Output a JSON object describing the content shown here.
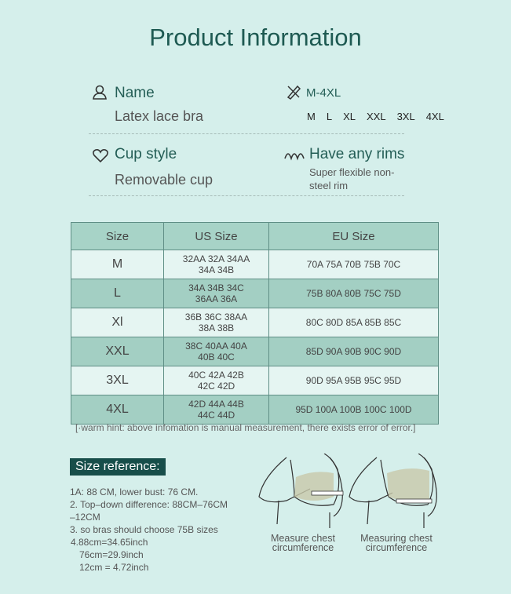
{
  "title": "Product Information",
  "specs": {
    "name_label": "Name",
    "name_value": "Latex lace bra",
    "size_label": "M-4XL",
    "sizes": [
      "M",
      "L",
      "XL",
      "XXL",
      "3XL",
      "4XL"
    ],
    "cup_label": "Cup style",
    "cup_value": "Removable cup",
    "rims_label": "Have any rims",
    "rims_value_1": "Super flexible non-",
    "rims_value_2": "steel rim"
  },
  "table": {
    "headers": [
      "Size",
      "US Size",
      "EU Size"
    ],
    "rows": [
      {
        "size": "M",
        "us1": "32AA 32A 34AA",
        "us2": "34A 34B",
        "eu": "70A 75A 70B 75B 70C"
      },
      {
        "size": "L",
        "us1": "34A 34B 34C",
        "us2": "36AA 36A",
        "eu": "75B 80A 80B 75C 75D"
      },
      {
        "size": "Xl",
        "us1": "36B 36C 38AA",
        "us2": "38A 38B",
        "eu": "80C 80D 85A 85B 85C"
      },
      {
        "size": "XXL",
        "us1": "38C 40AA 40A",
        "us2": "40B 40C",
        "eu": "85D 90A 90B 90C 90D"
      },
      {
        "size": "3XL",
        "us1": "40C 42A 42B",
        "us2": "42C 42D",
        "eu": "90D 95A 95B 95C 95D"
      },
      {
        "size": "4XL",
        "us1": "42D 44A 44B",
        "us2": "44C 44D",
        "eu": "95D 100A 100B 100C 100D"
      }
    ]
  },
  "hint": "[·warm hint: above infomation is manual measurement, there exists error of error.]",
  "reference": {
    "title": "Size reference:",
    "lines": [
      "1A: 88 CM, lower bust: 76 CM.",
      "2. Top–down difference: 88CM–76CM",
      "–12CM",
      "3. so bras should choose 75B sizes",
      "4.88cm=34.65inch",
      "76cm=29.9inch",
      "12cm = 4.72inch"
    ]
  },
  "figures": {
    "cap1_1": "Measure chest",
    "cap1_2": "circumference",
    "cap2_1": "Measuring chest",
    "cap2_2": "circumference"
  },
  "colors": {
    "background": "#d5efeb",
    "accent": "#1e5a52",
    "table_header": "#a7d3c7",
    "table_dark_row": "#a3cfc3",
    "table_light_row": "#e5f5f2"
  }
}
